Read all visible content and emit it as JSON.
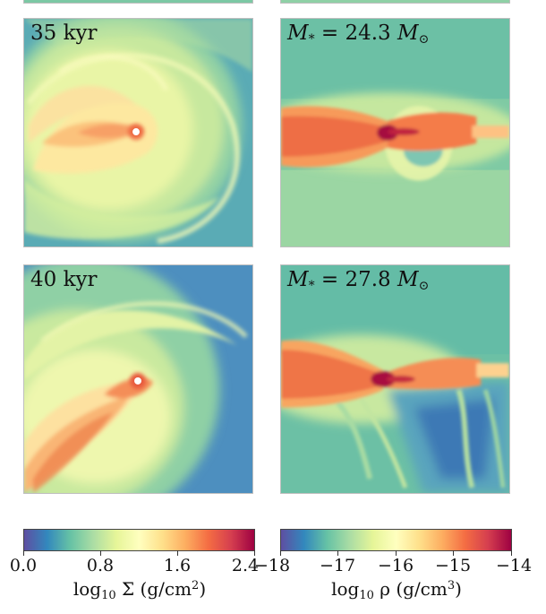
{
  "panels": {
    "top_left_label": "35 kyr",
    "bottom_left_label": "40 kyr",
    "top_right_mass": "24.3",
    "bottom_right_mass": "27.8",
    "mass_symbol": "M",
    "mass_sub": "*",
    "equals": " = ",
    "sun_unit": "M",
    "sun_sub": "⊙"
  },
  "colorbars": {
    "left": {
      "ticks": [
        "0.0",
        "0.8",
        "1.6",
        "2.4"
      ],
      "label_prefix": "log",
      "label_sub": "10",
      "label_body": " Σ (g/cm",
      "label_sup": "2",
      "label_end": ")"
    },
    "right": {
      "ticks": [
        "−18",
        "−17",
        "−16",
        "−15",
        "−14"
      ],
      "label_prefix": "log",
      "label_sub": "10",
      "label_body": " ρ (g/cm",
      "label_sup": "3",
      "label_end": ")"
    },
    "colormap": [
      "#5e4fa2",
      "#3288bd",
      "#66c2a5",
      "#abdda4",
      "#e6f598",
      "#ffffbf",
      "#fee08b",
      "#fdae61",
      "#f46d43",
      "#d53e4f",
      "#9e0142"
    ]
  }
}
